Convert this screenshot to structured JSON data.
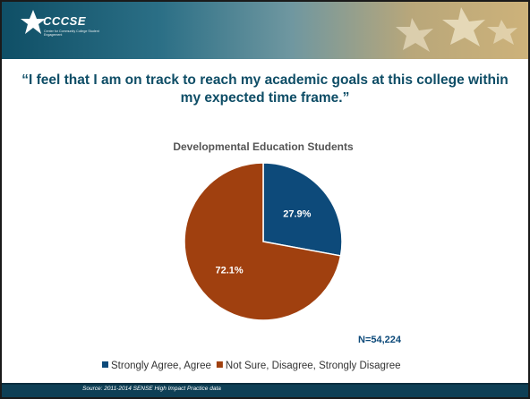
{
  "header": {
    "logo_text": "CCCSE",
    "logo_subtitle": "Center for Community College Student Engagement"
  },
  "slide_title": "“I feel that I am on track to reach my academic goals at this college within my expected time frame.”",
  "footer": {
    "source": "Source: 2011-2014 SENSE High Impact Practice data"
  },
  "colors": {
    "agree": "#0d4a7a",
    "disagree": "#a0400f",
    "title": "#0e4d66",
    "label": "#0d4a7a"
  },
  "chart_data": {
    "type": "pie",
    "title": "Developmental Education Students",
    "slices": [
      {
        "name": "Strongly Agree, Agree",
        "value": 27.9,
        "label": "27.9%",
        "color": "#0d4a7a"
      },
      {
        "name": "Not Sure, Disagree, Strongly Disagree",
        "value": 72.1,
        "label": "72.1%",
        "color": "#a0400f"
      }
    ],
    "n_label": "N=54,224",
    "legend_position": "bottom"
  }
}
